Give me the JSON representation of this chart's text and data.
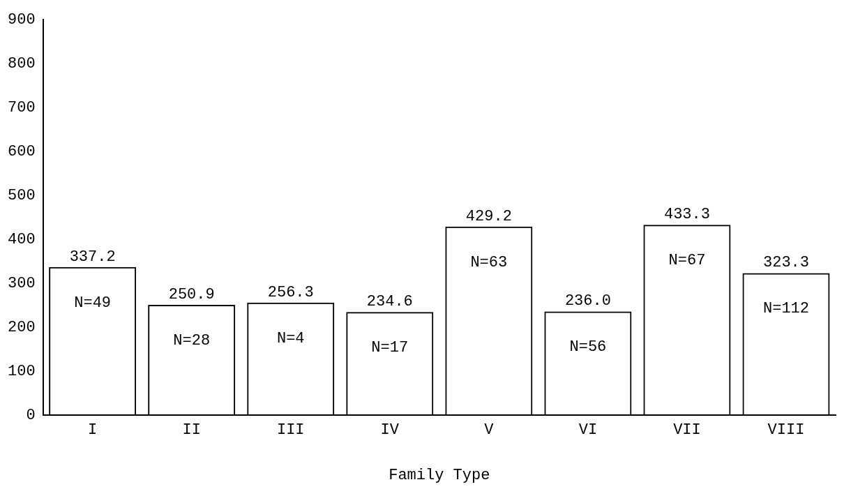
{
  "chart_data": {
    "type": "bar",
    "xlabel": "Family Type",
    "categories": [
      "I",
      "II",
      "III",
      "IV",
      "V",
      "VI",
      "VII",
      "VIII"
    ],
    "values": [
      337.2,
      250.9,
      256.3,
      234.6,
      429.2,
      236.0,
      433.3,
      323.3
    ],
    "value_labels": [
      "337.2",
      "250.9",
      "256.3",
      "234.6",
      "429.2",
      "236.0",
      "433.3",
      "323.3"
    ],
    "color": "#000000",
    "ylim": [
      0,
      900
    ],
    "yticks": [
      0,
      100,
      200,
      300,
      400,
      500,
      600,
      700,
      800,
      900
    ],
    "grid": false,
    "annotations": [
      "N=49",
      "N=28",
      "N=4",
      "N=17",
      "N=63",
      "N=56",
      "N=67",
      "N=112"
    ]
  }
}
